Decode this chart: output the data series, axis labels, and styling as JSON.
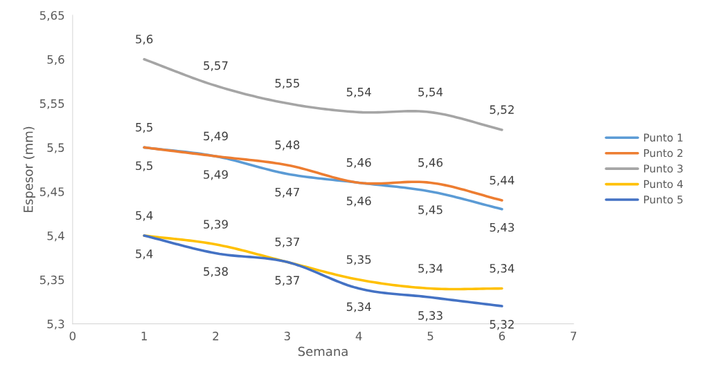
{
  "chart_data": {
    "type": "line",
    "xlabel": "Semana",
    "ylabel": "Espesor (mm)",
    "x": [
      1,
      2,
      3,
      4,
      5,
      6
    ],
    "xlim": [
      0,
      7
    ],
    "xticks": [
      0,
      1,
      2,
      3,
      4,
      5,
      6,
      7
    ],
    "ylim": [
      5.3,
      5.65
    ],
    "yticks": [
      {
        "value": 5.3,
        "label": "5,3"
      },
      {
        "value": 5.35,
        "label": "5,35"
      },
      {
        "value": 5.4,
        "label": "5,4"
      },
      {
        "value": 5.45,
        "label": "5,45"
      },
      {
        "value": 5.5,
        "label": "5,5"
      },
      {
        "value": 5.55,
        "label": "5,55"
      },
      {
        "value": 5.6,
        "label": "5,6"
      },
      {
        "value": 5.65,
        "label": "5,65"
      }
    ],
    "grid": false,
    "legend": "right",
    "marker": "none",
    "line_style": "solid",
    "series": [
      {
        "name": "Punto 1",
        "color": "#5b9bd5",
        "values": [
          5.5,
          5.49,
          5.47,
          5.46,
          5.45,
          5.43
        ],
        "value_labels": [
          "5,5",
          "5,49",
          "5,47",
          "5,46",
          "5,45",
          "5,43"
        ]
      },
      {
        "name": "Punto 2",
        "color": "#ed7d31",
        "values": [
          5.5,
          5.49,
          5.48,
          5.46,
          5.46,
          5.44
        ],
        "value_labels": [
          "5,5",
          "5,49",
          "5,48",
          "5,46",
          "5,46",
          "5,44"
        ]
      },
      {
        "name": "Punto 3",
        "color": "#a5a5a5",
        "values": [
          5.6,
          5.57,
          5.55,
          5.54,
          5.54,
          5.52
        ],
        "value_labels": [
          "5,6",
          "5,57",
          "5,55",
          "5,54",
          "5,54",
          "5,52"
        ]
      },
      {
        "name": "Punto 4",
        "color": "#ffc000",
        "values": [
          5.4,
          5.39,
          5.37,
          5.35,
          5.34,
          5.34
        ],
        "value_labels": [
          "5,4",
          "5,39",
          "5,37",
          "5,35",
          "5,34",
          "5,34"
        ]
      },
      {
        "name": "Punto 5",
        "color": "#4472c4",
        "values": [
          5.4,
          5.38,
          5.37,
          5.34,
          5.33,
          5.32
        ],
        "value_labels": [
          "5,4",
          "5,38",
          "5,37",
          "5,34",
          "5,33",
          "5,32"
        ]
      }
    ]
  }
}
